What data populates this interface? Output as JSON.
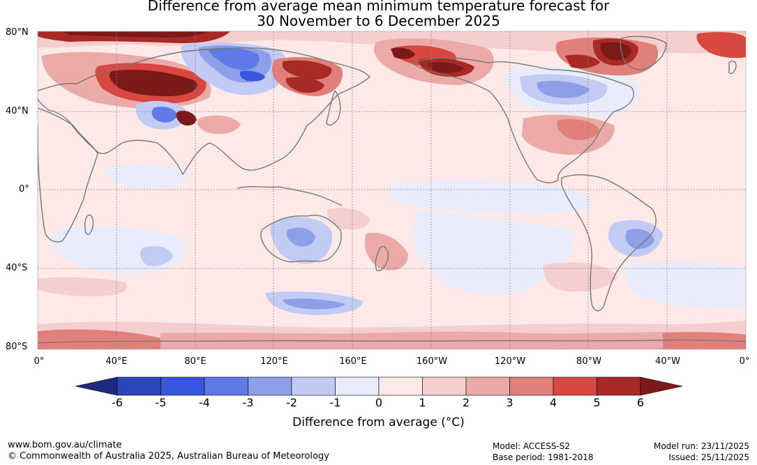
{
  "title": {
    "line1": "Difference from average mean minimum temperature forecast for",
    "line2": "30 November to 6 December 2025"
  },
  "map": {
    "lat_labels": [
      "80°N",
      "40°N",
      "0°",
      "40°S",
      "80°S"
    ],
    "lon_labels": [
      "0°",
      "40°E",
      "80°E",
      "120°E",
      "160°E",
      "160°W",
      "120°W",
      "80°W",
      "40°W",
      "0°"
    ],
    "lat_values": [
      80,
      40,
      0,
      -40,
      -80
    ],
    "lon_values": [
      0,
      40,
      80,
      120,
      160,
      200,
      240,
      280,
      320,
      360
    ]
  },
  "colorbar": {
    "ticks": [
      "-6",
      "-5",
      "-4",
      "-3",
      "-2",
      "-1",
      "0",
      "1",
      "2",
      "3",
      "4",
      "5",
      "6"
    ],
    "tick_values": [
      -6,
      -5,
      -4,
      -3,
      -2,
      -1,
      0,
      1,
      2,
      3,
      4,
      5,
      6
    ],
    "colors": [
      "#1d2a80",
      "#2b46b8",
      "#3a55e0",
      "#5f7ae6",
      "#8e9fe8",
      "#c2cbf3",
      "#e8ecfb",
      "#fde9e8",
      "#f5cfcf",
      "#eba9a7",
      "#e17f7b",
      "#d84840",
      "#a82a24",
      "#7b1a18"
    ],
    "label": "Difference from average (°C)"
  },
  "footer": {
    "url": "www.bom.gov.au/climate",
    "copyright": "© Commonwealth of Australia 2025, Australian Bureau of Meteorology",
    "model": "Model: ACCESS-S2",
    "base_period": "Base period: 1981-2018",
    "model_run": "Model run: 23/11/2025",
    "issued": "Issued: 25/11/2025"
  }
}
